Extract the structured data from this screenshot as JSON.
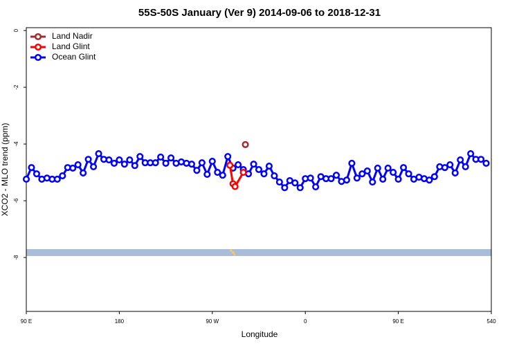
{
  "chart_data": {
    "type": "line",
    "title": "55S-50S January (Ver 9)   2014-09-06 to 2018-12-31",
    "x_label": "Longitude",
    "y_label": "XCO2 - MLO trend (ppm)",
    "xlim": [
      90,
      540
    ],
    "ylim": [
      -9.9,
      0.1
    ],
    "xticks": [
      {
        "value": 90,
        "label": "90 E"
      },
      180,
      {
        "value": 270,
        "label": "90 W"
      },
      {
        "value": 360,
        "label": "0"
      },
      {
        "value": 450,
        "label": "90 E"
      },
      540
    ],
    "yticks": [
      0,
      -2,
      -4,
      -6,
      -8
    ],
    "legend": "top-left",
    "series": [
      {
        "name": "Land Nadir",
        "color": "#a52a2a",
        "x": [
          302
        ],
        "values": [
          -4.02
        ]
      },
      {
        "name": "Land Glint",
        "color": "#ff0000",
        "x": [
          287,
          290,
          292,
          300
        ],
        "values": [
          -4.75,
          -5.4,
          -5.5,
          -5.0
        ]
      },
      {
        "name": "Ocean Glint",
        "color": "#0000ff",
        "x": [
          90,
          95,
          100,
          105,
          110,
          115,
          120,
          125,
          130,
          135,
          140,
          145,
          150,
          155,
          160,
          165,
          170,
          175,
          180,
          185,
          190,
          195,
          200,
          205,
          210,
          215,
          220,
          225,
          230,
          235,
          240,
          245,
          250,
          255,
          260,
          265,
          270,
          275,
          280,
          285,
          290,
          295,
          300,
          305,
          310,
          315,
          320,
          325,
          330,
          335,
          340,
          345,
          350,
          355,
          360,
          365,
          370,
          375,
          380,
          385,
          390,
          395,
          400,
          405,
          410,
          415,
          420,
          425,
          430,
          435,
          440,
          445,
          450,
          455,
          460,
          465,
          470,
          475,
          480,
          485,
          490,
          495,
          500,
          505,
          510,
          515,
          520,
          525,
          530,
          535
        ],
        "values": [
          -5.24,
          -4.83,
          -5.05,
          -5.24,
          -5.2,
          -5.24,
          -5.24,
          -5.12,
          -4.83,
          -4.85,
          -4.73,
          -5.02,
          -4.54,
          -4.8,
          -4.34,
          -4.54,
          -4.56,
          -4.68,
          -4.56,
          -4.71,
          -4.56,
          -4.76,
          -4.44,
          -4.66,
          -4.66,
          -4.66,
          -4.46,
          -4.68,
          -4.49,
          -4.68,
          -4.63,
          -4.68,
          -4.71,
          -4.93,
          -4.66,
          -5.07,
          -4.61,
          -5.0,
          -5.1,
          -4.44,
          -4.85,
          -4.73,
          -4.9,
          -5.05,
          -4.71,
          -4.9,
          -5.05,
          -4.78,
          -5.12,
          -5.34,
          -5.54,
          -5.29,
          -5.37,
          -5.54,
          -5.22,
          -5.2,
          -5.51,
          -5.15,
          -5.22,
          -5.22,
          -5.1,
          -5.32,
          -5.27,
          -4.68,
          -5.2,
          -5.05,
          -4.95,
          -5.34,
          -4.85,
          -5.24,
          -4.85,
          -5.0,
          -5.24,
          -4.83,
          -5.05,
          -5.24,
          -5.17,
          -5.22,
          -5.27,
          -5.15,
          -4.8,
          -4.83,
          -4.73,
          -5.02,
          -4.56,
          -4.8,
          -4.34,
          -4.54,
          -4.54,
          -4.68
        ]
      }
    ]
  }
}
